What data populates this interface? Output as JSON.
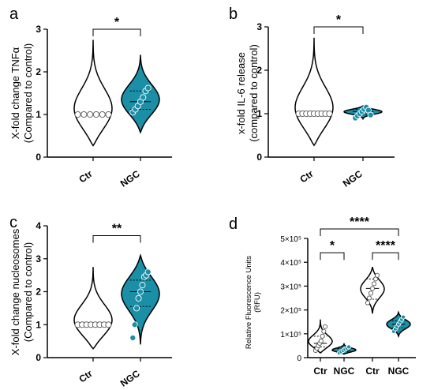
{
  "colors": {
    "control_fill": "#ffffff",
    "treatment_fill": "#1a8fa6",
    "stroke": "#000000"
  },
  "chart_data": [
    {
      "id": "a",
      "type": "violin",
      "panel_label": "a",
      "ylabel_lines": [
        "X-fold change TNFα",
        "(Compared to control)"
      ],
      "ylim": [
        0,
        3
      ],
      "yticks": [
        "0",
        "1",
        "2",
        "3"
      ],
      "categories": [
        "Ctr",
        "NGC"
      ],
      "series": [
        {
          "category": "Ctr",
          "fill": "control",
          "min": 0.27,
          "max": 2.75,
          "median": 1.0,
          "q1": 1.0,
          "q3": 1.0,
          "points": [
            1,
            1,
            1,
            1,
            1,
            1
          ]
        },
        {
          "category": "NGC",
          "fill": "treatment",
          "min": 0.58,
          "max": 2.4,
          "median": 1.3,
          "q1": 1.12,
          "q3": 1.55,
          "points": [
            1.05,
            1.12,
            1.2,
            1.3,
            1.4,
            1.55,
            1.62
          ]
        }
      ],
      "significance": [
        {
          "from": 0,
          "to": 1,
          "label": "*",
          "y": 3.0
        }
      ]
    },
    {
      "id": "b",
      "type": "violin",
      "panel_label": "b",
      "ylabel_lines": [
        "x-fold IL-6 release",
        "(compared to control)"
      ],
      "ylim": [
        0,
        3
      ],
      "yticks": [
        "0",
        "1",
        "2",
        "3"
      ],
      "categories": [
        "Ctr",
        "NGC"
      ],
      "series": [
        {
          "category": "Ctr",
          "fill": "control",
          "min": 0.27,
          "max": 2.75,
          "median": 1.0,
          "q1": 1.0,
          "q3": 1.0,
          "points": [
            1,
            1,
            1,
            1,
            1,
            1,
            1,
            1,
            1
          ]
        },
        {
          "category": "NGC",
          "fill": "treatment",
          "min": 0.88,
          "max": 1.18,
          "median": 1.05,
          "q1": 0.98,
          "q3": 1.1,
          "points": [
            0.9,
            0.95,
            1.0,
            1.05,
            1.1,
            1.15,
            1.08,
            0.97
          ]
        }
      ],
      "significance": [
        {
          "from": 0,
          "to": 1,
          "label": "*",
          "y": 3.0
        }
      ]
    },
    {
      "id": "c",
      "type": "violin",
      "panel_label": "c",
      "ylabel_lines": [
        "X-fold change nucleosomes",
        "(Compared to control)"
      ],
      "ylim": [
        0,
        4
      ],
      "yticks": [
        "0",
        "1",
        "2",
        "3",
        "4"
      ],
      "categories": [
        "Ctr",
        "NGC"
      ],
      "series": [
        {
          "category": "Ctr",
          "fill": "control",
          "min": 0.27,
          "max": 2.75,
          "median": 1.0,
          "q1": 1.0,
          "q3": 1.0,
          "points": [
            1,
            1,
            1,
            1,
            1,
            1,
            1,
            1
          ]
        },
        {
          "category": "NGC",
          "fill": "treatment",
          "min": 0.4,
          "max": 3.1,
          "median": 2.0,
          "q1": 1.55,
          "q3": 2.35,
          "points": [
            0.6,
            1.0,
            1.5,
            1.8,
            2.0,
            2.2,
            2.45,
            2.5,
            2.6
          ]
        }
      ],
      "significance": [
        {
          "from": 0,
          "to": 1,
          "label": "**",
          "y": 3.7
        }
      ]
    },
    {
      "id": "d",
      "type": "violin",
      "panel_label": "d",
      "ylabel_lines": [
        "Relative Fluorescence Units",
        "(RFU)"
      ],
      "ylim": [
        0,
        500000
      ],
      "yticks": [
        "0",
        "1×10⁵",
        "2×10⁵",
        "3×10⁵",
        "4×10⁵",
        "5×10⁵"
      ],
      "categories": [
        "Ctr",
        "NGC",
        "Ctr",
        "NGC"
      ],
      "series": [
        {
          "category": "Ctr",
          "fill": "control",
          "min": 20000,
          "max": 160000,
          "median": 60000,
          "q1": 45000,
          "q3": 90000,
          "points": [
            30000,
            40000,
            50000,
            60000,
            70000,
            90000,
            110000,
            130000
          ]
        },
        {
          "category": "NGC",
          "fill": "treatment",
          "min": 15000,
          "max": 60000,
          "median": 30000,
          "q1": 25000,
          "q3": 38000,
          "points": [
            20000,
            25000,
            30000,
            35000,
            40000,
            45000
          ]
        },
        {
          "category": "Ctr",
          "fill": "control",
          "min": 185000,
          "max": 380000,
          "median": 290000,
          "q1": 245000,
          "q3": 330000,
          "points": [
            230000,
            250000,
            270000,
            290000,
            310000,
            330000,
            345000
          ]
        },
        {
          "category": "NGC",
          "fill": "treatment",
          "min": 90000,
          "max": 190000,
          "median": 140000,
          "q1": 125000,
          "q3": 155000,
          "points": [
            110000,
            120000,
            130000,
            140000,
            150000,
            160000,
            170000
          ]
        }
      ],
      "significance": [
        {
          "from": 0,
          "to": 1,
          "label": "*",
          "y": 440000
        },
        {
          "from": 0,
          "to": 3,
          "label": "****",
          "y": 510000
        },
        {
          "from": 2,
          "to": 3,
          "label": "****",
          "y": 440000
        }
      ]
    }
  ]
}
